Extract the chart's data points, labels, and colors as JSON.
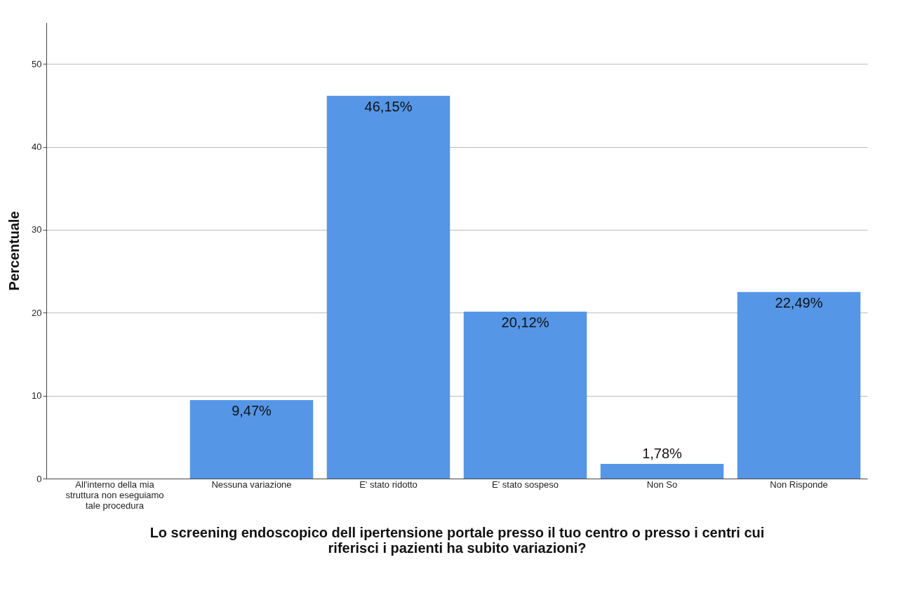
{
  "chart_data": {
    "type": "bar",
    "xlabel": "Lo screening endoscopico dell ipertensione portale presso il tuo centro o presso i centri cui riferisci i pazienti ha subito variazioni?",
    "ylabel": "Percentuale",
    "categories": [
      "All'interno della mia struttura non eseguiamo tale procedura",
      "Nessuna variazione",
      "E' stato ridotto",
      "E' stato sospeso",
      "Non So",
      "Non Risponde"
    ],
    "values": [
      null,
      9.47,
      46.15,
      20.12,
      1.78,
      22.49
    ],
    "value_labels": [
      null,
      "9,47%",
      "46,15%",
      "20,12%",
      "1,78%",
      "22,49%"
    ],
    "color": "#5596e6",
    "ylim": [
      0,
      55
    ],
    "yticks": [
      0,
      10,
      20,
      30,
      40,
      50
    ],
    "grid": "y"
  }
}
